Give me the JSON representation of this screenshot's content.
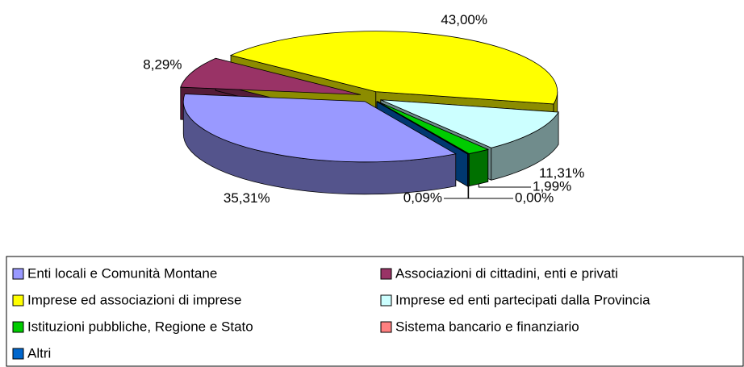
{
  "chart_data": {
    "type": "pie3d",
    "categories": [
      "Enti locali e Comunità Montane",
      "Associazioni di cittadini, enti e privati",
      "Imprese ed associazioni di imprese",
      "Imprese ed enti partecipati dalla Provincia",
      "Istituzioni pubbliche, Regione e Stato",
      "Sistema bancario e finanziario",
      "Altri"
    ],
    "values": [
      35.31,
      8.29,
      43.0,
      11.31,
      1.99,
      0.0,
      0.09
    ],
    "value_labels": [
      "35,31%",
      "8,29%",
      "43,00%",
      "11,31%",
      "1,99%",
      "0,00%",
      "0,09%"
    ],
    "colors": [
      "#9999ff",
      "#993366",
      "#ffff00",
      "#ccffff",
      "#00cc00",
      "#ff8080",
      "#0066cc"
    ],
    "legend": "bottom"
  }
}
